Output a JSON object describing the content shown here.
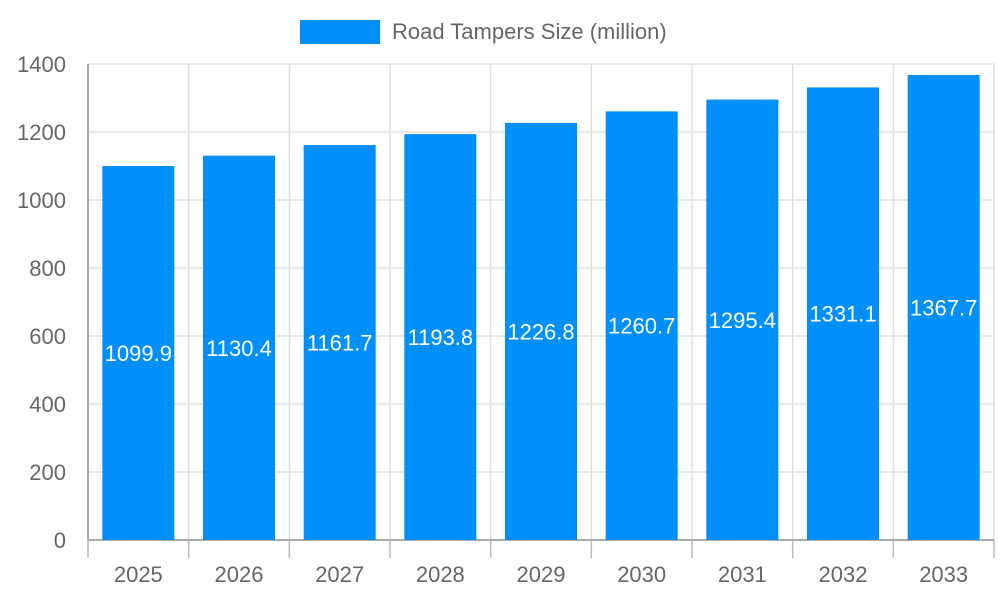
{
  "chart_data": {
    "type": "bar",
    "title": "",
    "legend": [
      {
        "label": "Road Tampers Size (million)",
        "color": "#008ffb",
        "placement": "top-center"
      }
    ],
    "categories": [
      "2025",
      "2026",
      "2027",
      "2028",
      "2029",
      "2030",
      "2031",
      "2032",
      "2033"
    ],
    "series": [
      {
        "name": "Road Tampers Size (million)",
        "values": [
          1099.9,
          1130.4,
          1161.7,
          1193.8,
          1226.8,
          1260.7,
          1295.4,
          1331.1,
          1367.7
        ]
      }
    ],
    "xlabel": "",
    "ylabel": "",
    "ylim": [
      0,
      1400
    ],
    "yticks": [
      0,
      200,
      400,
      600,
      800,
      1000,
      1200,
      1400
    ],
    "grid": true,
    "data_labels": true
  }
}
